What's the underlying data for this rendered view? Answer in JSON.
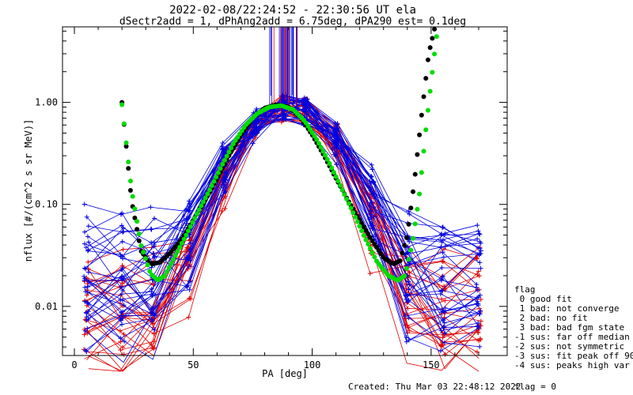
{
  "chart_data": {
    "type": "line",
    "title": "2022-02-08/22:24:52 - 22:30:56 UT ela",
    "subtitle": "dSectr2add = 1, dPhAng2add = 6.75deg, dPA290_est=   0.1deg",
    "xlabel": "PA [deg]",
    "ylabel": "nflux [#/(cm^2 s sr MeV)]",
    "xlim": [
      -5,
      182
    ],
    "ylim": [
      0.0033,
      5.5
    ],
    "yscale": "log",
    "x_tick_values": [
      0,
      50,
      100,
      150
    ],
    "x_tick_labels": [
      "0",
      "50",
      "100",
      "150"
    ],
    "y_tick_values": [
      0.01,
      0.1,
      1.0
    ],
    "y_tick_labels": [
      "0.01",
      "0.10",
      "1.00"
    ],
    "footer_created": "Created: Thu Mar 03 22:48:12 2022",
    "footer_flag": "flag = 0",
    "legend": {
      "title": "flag",
      "entries": [
        " 0 good fit",
        " 1 bad: not converge",
        " 2 bad: no fit",
        " 3 bad: bad fgm state",
        "-1 sus: far off median",
        "-2 sus: not symmetric",
        "-3 sus: fit peak off 90",
        "-4 sus: peaks high var"
      ]
    },
    "series": [
      {
        "color": "#000000",
        "style": "dots",
        "x": [
          20,
          24,
          28,
          32,
          36,
          40,
          45,
          50,
          55,
          60,
          65,
          70,
          75,
          80,
          85,
          90,
          95,
          100,
          105,
          110,
          115,
          120,
          125,
          130,
          134,
          137,
          140,
          143,
          146,
          149,
          152
        ],
        "y": [
          1.0,
          0.11,
          0.035,
          0.026,
          0.027,
          0.033,
          0.045,
          0.07,
          0.11,
          0.18,
          0.3,
          0.48,
          0.7,
          0.88,
          0.95,
          0.9,
          0.72,
          0.48,
          0.3,
          0.18,
          0.11,
          0.07,
          0.045,
          0.03,
          0.026,
          0.028,
          0.05,
          0.17,
          0.75,
          3.0,
          6.0
        ]
      },
      {
        "color": "#00dd00",
        "style": "dots",
        "x": [
          20,
          24,
          28,
          32,
          35,
          38,
          42,
          47,
          52,
          57,
          62,
          67,
          72,
          77,
          82,
          87,
          92,
          97,
          102,
          107,
          112,
          117,
          122,
          127,
          132,
          136,
          139,
          142,
          145,
          148,
          151,
          153
        ],
        "y": [
          0.95,
          0.14,
          0.04,
          0.021,
          0.018,
          0.02,
          0.03,
          0.05,
          0.085,
          0.14,
          0.24,
          0.4,
          0.6,
          0.78,
          0.9,
          0.93,
          0.85,
          0.65,
          0.43,
          0.26,
          0.15,
          0.085,
          0.048,
          0.028,
          0.02,
          0.018,
          0.02,
          0.04,
          0.12,
          0.6,
          2.5,
          6.0
        ]
      }
    ]
  }
}
